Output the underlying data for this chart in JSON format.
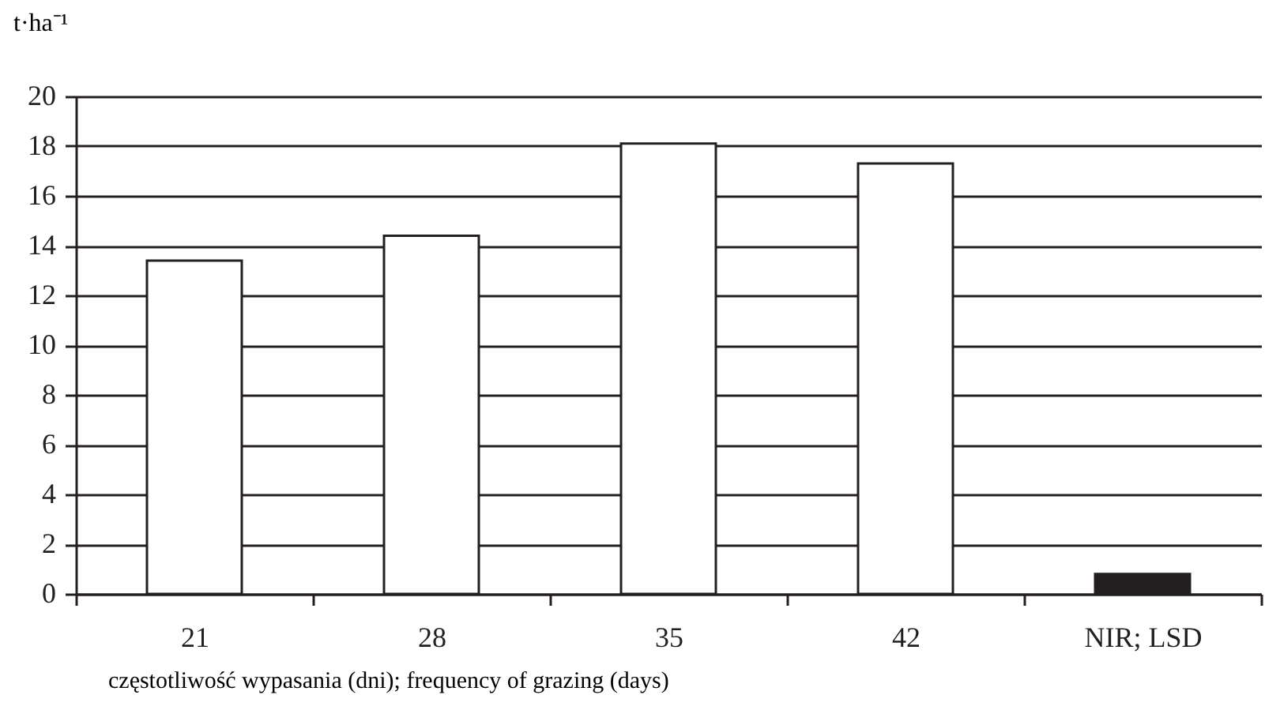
{
  "chart_data": {
    "type": "bar",
    "ylabel": "t·ha⁻¹",
    "xlabel": "częstotliwość wypasania (dni); frequency of grazing (days)",
    "categories": [
      "21",
      "28",
      "35",
      "42",
      "NIR; LSD"
    ],
    "values": [
      13.4,
      14.4,
      18.1,
      17.3,
      0.8
    ],
    "colors": [
      "#ffffff",
      "#ffffff",
      "#ffffff",
      "#ffffff",
      "#231f20"
    ],
    "ylim": [
      0,
      20
    ],
    "yticks": [
      0,
      2,
      4,
      6,
      8,
      10,
      12,
      14,
      16,
      18,
      20
    ],
    "grid": "y"
  }
}
